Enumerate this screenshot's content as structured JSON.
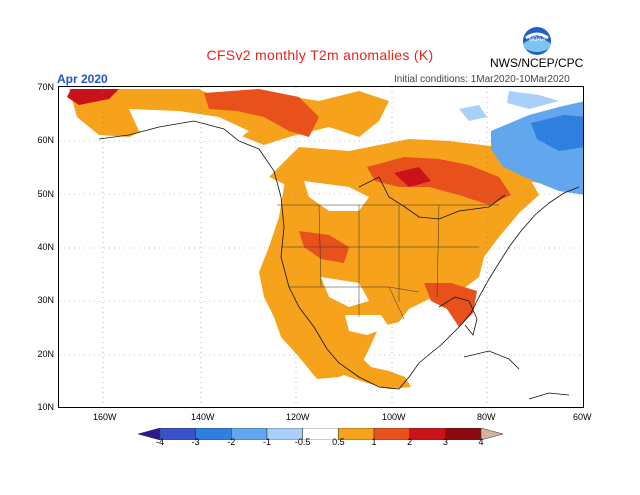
{
  "header": {
    "title": "CFSv2 monthly T2m anomalies (K)",
    "agency": "NWS/NCEP/CPC",
    "period": "Apr 2020",
    "initial_conditions": "Initial conditions: 1Mar2020-10Mar2020",
    "logo_text": "NOAA"
  },
  "axes": {
    "lat_labels": [
      "70N",
      "60N",
      "50N",
      "40N",
      "30N",
      "20N",
      "10N"
    ],
    "lon_labels": [
      "160W",
      "140W",
      "120W",
      "100W",
      "80W",
      "60W"
    ]
  },
  "legend": {
    "labels": [
      "-4",
      "-3",
      "-2",
      "-1",
      "-0.5",
      "0.5",
      "1",
      "2",
      "3",
      "4"
    ],
    "colors": [
      "#2b1a8f",
      "#3a52c9",
      "#2f7fe0",
      "#62a6ee",
      "#a9d1f7",
      "#ffffff",
      "#f6a21b",
      "#e8501c",
      "#c9121a",
      "#8c0a10",
      "#d4b1a1"
    ]
  },
  "colors": {
    "title": "#e8231b",
    "period": "#1f56c9"
  }
}
